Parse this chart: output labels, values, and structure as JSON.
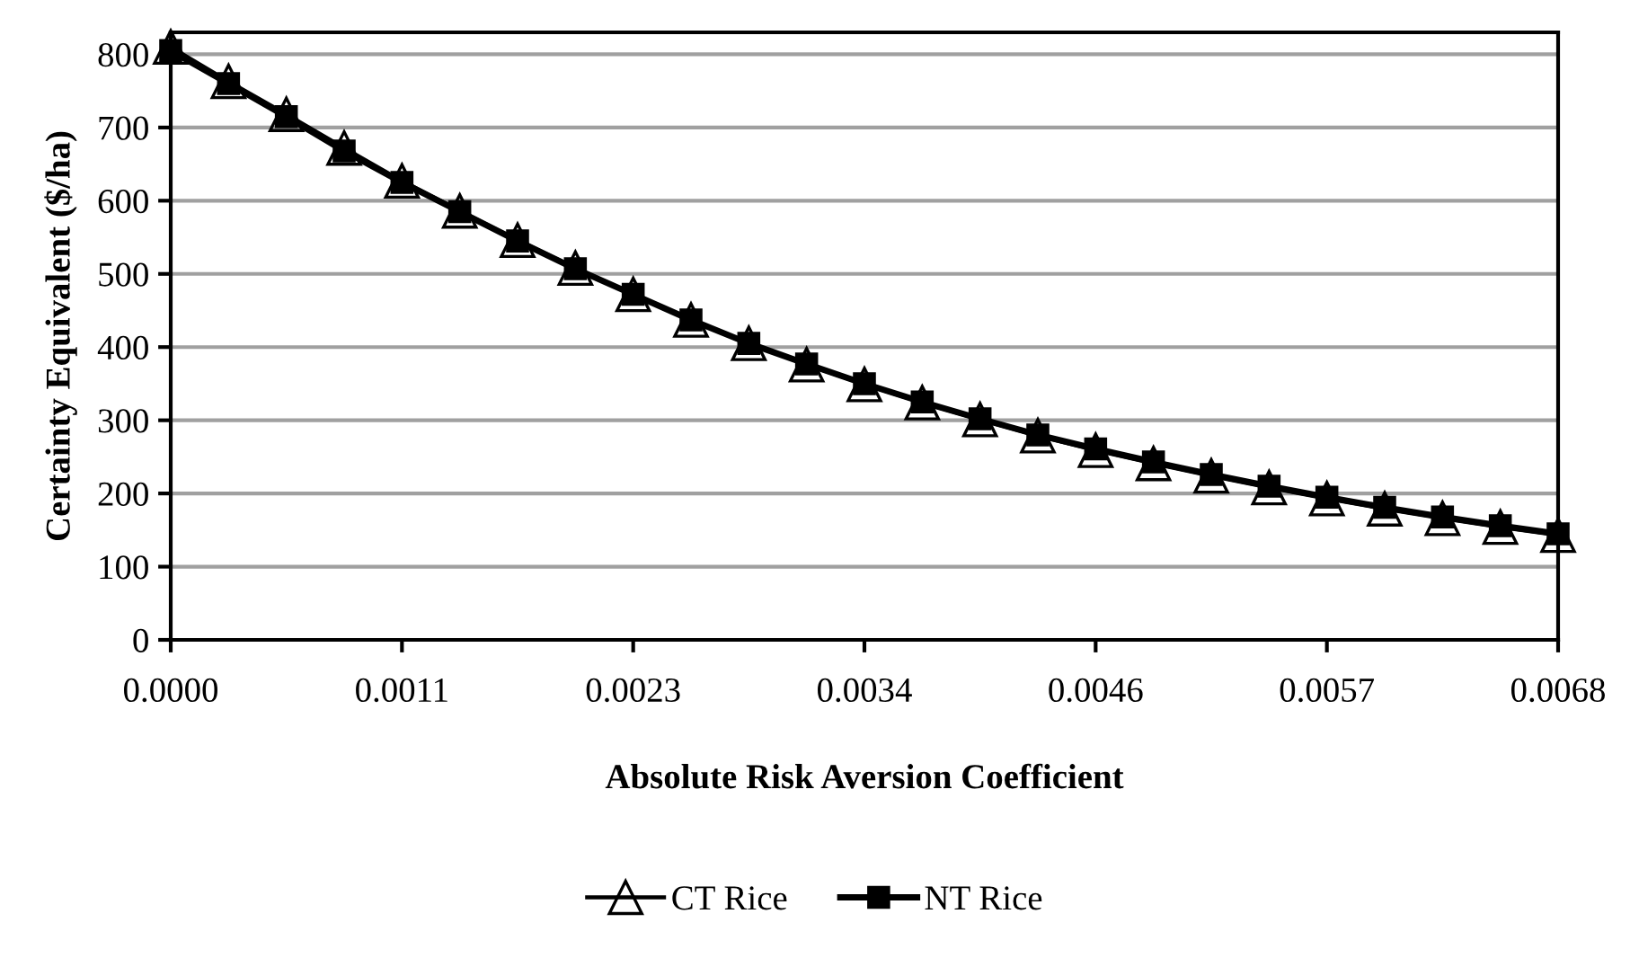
{
  "chart_data": {
    "type": "line",
    "xlabel": "Absolute Risk Aversion Coefficient",
    "ylabel": "Certainty Equivalent ($/ha)",
    "categories": [
      "0.0000",
      null,
      null,
      null,
      "0.0011",
      null,
      null,
      null,
      "0.0023",
      null,
      null,
      null,
      "0.0034",
      null,
      null,
      null,
      "0.0046",
      null,
      null,
      null,
      "0.0057",
      null,
      null,
      null,
      "0.0068"
    ],
    "series": [
      {
        "name": "CT Rice",
        "color": "#000000",
        "marker": "triangle",
        "values": [
          810,
          763,
          718,
          672,
          627,
          586,
          546,
          508,
          472,
          437,
          405,
          376,
          349,
          324,
          301,
          279,
          259,
          241,
          224,
          208,
          193,
          179,
          166,
          154,
          143
        ]
      },
      {
        "name": "NT Rice",
        "color": "#000000",
        "marker": "square",
        "values": [
          805,
          760,
          715,
          668,
          625,
          585,
          545,
          507,
          472,
          437,
          405,
          377,
          350,
          325,
          302,
          280,
          261,
          243,
          226,
          210,
          195,
          181,
          168,
          156,
          145
        ]
      }
    ],
    "ylim": [
      0,
      830
    ],
    "yticks": [
      0,
      100,
      200,
      300,
      400,
      500,
      600,
      700,
      800
    ],
    "grid": "y",
    "legend": "bottom",
    "line_style": "solid"
  }
}
